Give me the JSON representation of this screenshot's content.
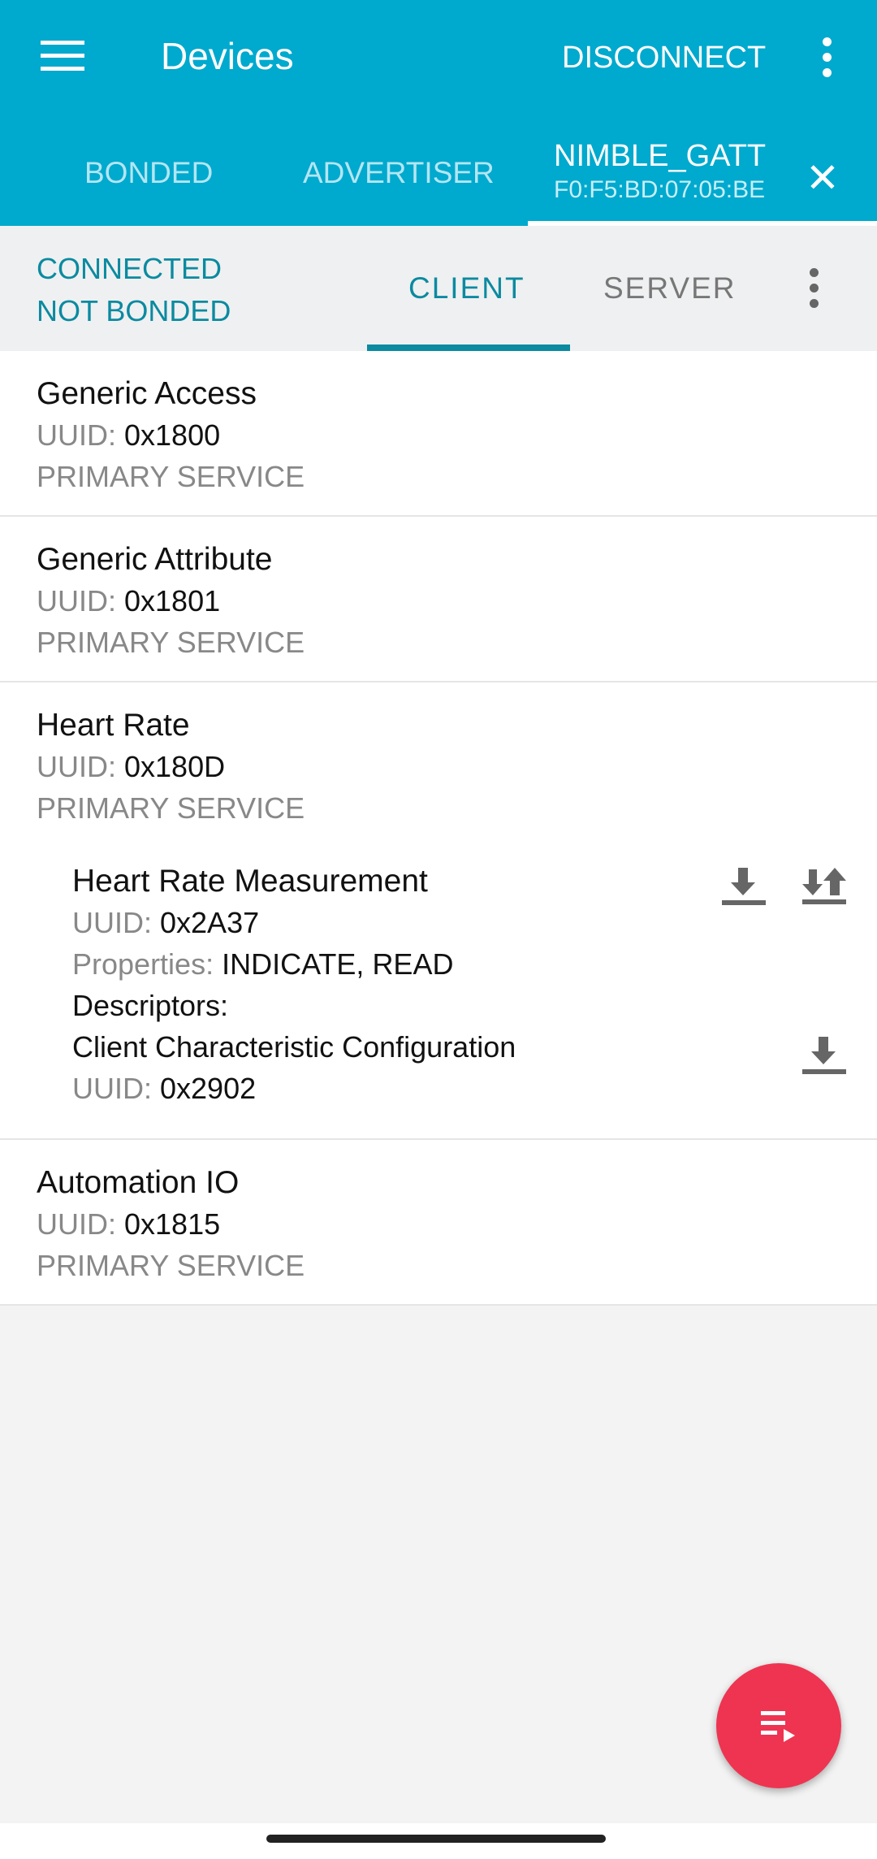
{
  "appbar": {
    "title": "Devices",
    "disconnect": "DISCONNECT",
    "color": "#00a9ce"
  },
  "tabs": [
    {
      "label": "BONDED"
    },
    {
      "label": "ADVERTISER"
    }
  ],
  "device_tab": {
    "name": "NIMBLE_GATT",
    "address": "F0:F5:BD:07:05:BE"
  },
  "status": {
    "connection": "CONNECTED",
    "bond": "NOT BONDED"
  },
  "subtabs": [
    {
      "label": "CLIENT",
      "selected": true
    },
    {
      "label": "SERVER",
      "selected": false
    }
  ],
  "uuid_label": "UUID:",
  "services": [
    {
      "name": "Generic Access",
      "uuid": "0x1800",
      "type": "PRIMARY SERVICE"
    },
    {
      "name": "Generic Attribute",
      "uuid": "0x1801",
      "type": "PRIMARY SERVICE"
    },
    {
      "name": "Heart Rate",
      "uuid": "0x180D",
      "type": "PRIMARY SERVICE",
      "characteristic": {
        "name": "Heart Rate Measurement",
        "uuid": "0x2A37",
        "properties_label": "Properties:",
        "properties": "INDICATE, READ",
        "descriptors_label": "Descriptors:",
        "descriptor": {
          "name": "Client Characteristic Configuration",
          "uuid": "0x2902"
        }
      }
    },
    {
      "name": "Automation IO",
      "uuid": "0x1815",
      "type": "PRIMARY SERVICE"
    }
  ],
  "fab": {
    "icon": "playlist-play-icon",
    "color": "#ee3451"
  }
}
